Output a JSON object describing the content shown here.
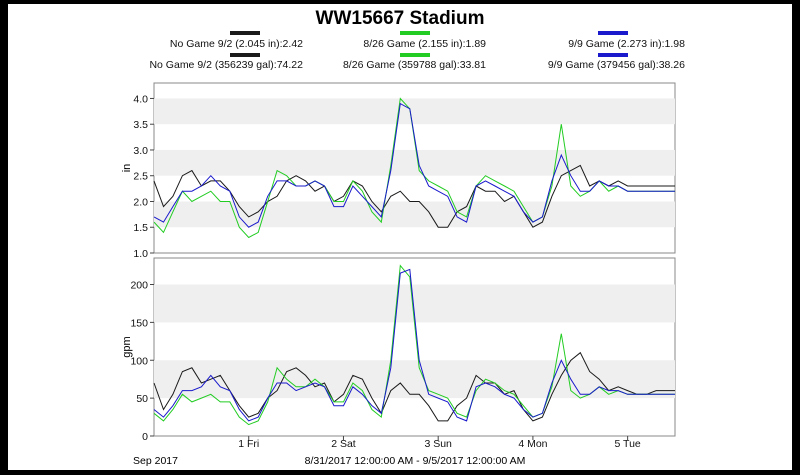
{
  "title": "WW15667 Stadium",
  "legend": {
    "row1": [
      {
        "label": "No Game 9/2 (2.045 in):2.42",
        "color": "#1a1a1a"
      },
      {
        "label": "8/26 Game (2.155 in):1.89",
        "color": "#22cc22"
      },
      {
        "label": "9/9 Game (2.273 in):1.98",
        "color": "#1a1acc"
      }
    ],
    "row2": [
      {
        "label": "No Game 9/2 (356239 gal):74.22",
        "color": "#1a1a1a"
      },
      {
        "label": "8/26 Game (359788 gal):33.81",
        "color": "#22cc22"
      },
      {
        "label": "9/9 Game (379456 gal):38.26",
        "color": "#1a1acc"
      }
    ]
  },
  "xaxis": {
    "start_label": "Sep 2017",
    "range_label": "8/31/2017 12:00:00 AM - 9/5/2017 12:00:00 AM",
    "ticks": [
      "1 Fri",
      "2 Sat",
      "3 Sun",
      "4 Mon",
      "5 Tue"
    ]
  },
  "chart_data": [
    {
      "type": "line",
      "ylabel": "in",
      "ylim": [
        1.0,
        4.3
      ],
      "yticks": [
        "1.0",
        "1.5",
        "2.0",
        "2.5",
        "3.0",
        "3.5",
        "4.0"
      ],
      "xlim": [
        0,
        5.5
      ],
      "series": [
        {
          "name": "No Game 9/2 (2.045 in):2.42",
          "color": "#1a1a1a",
          "x": [
            0,
            0.1,
            0.2,
            0.3,
            0.4,
            0.5,
            0.6,
            0.7,
            0.8,
            0.9,
            1.0,
            1.1,
            1.2,
            1.3,
            1.4,
            1.5,
            1.6,
            1.7,
            1.8,
            1.9,
            2.0,
            2.1,
            2.2,
            2.3,
            2.4,
            2.5,
            2.6,
            2.7,
            2.8,
            2.9,
            3.0,
            3.1,
            3.2,
            3.3,
            3.4,
            3.5,
            3.6,
            3.7,
            3.8,
            3.9,
            4.0,
            4.1,
            4.2,
            4.3,
            4.4,
            4.5,
            4.6,
            4.7,
            4.8,
            4.9,
            5.0,
            5.1,
            5.2,
            5.3,
            5.4,
            5.5
          ],
          "y": [
            2.4,
            1.9,
            2.1,
            2.5,
            2.6,
            2.3,
            2.4,
            2.4,
            2.2,
            1.9,
            1.7,
            1.8,
            2.0,
            2.1,
            2.4,
            2.5,
            2.4,
            2.2,
            2.3,
            2.0,
            2.1,
            2.4,
            2.3,
            2.0,
            1.8,
            2.1,
            2.2,
            2.0,
            2.0,
            1.8,
            1.5,
            1.5,
            1.8,
            1.9,
            2.3,
            2.2,
            2.2,
            2.0,
            2.1,
            1.8,
            1.5,
            1.6,
            2.1,
            2.5,
            2.6,
            2.7,
            2.3,
            2.4,
            2.3,
            2.4,
            2.3,
            2.3,
            2.3,
            2.3,
            2.3,
            2.3
          ]
        },
        {
          "name": "8/26 Game (2.155 in):1.89",
          "color": "#22cc22",
          "x": [
            0,
            0.1,
            0.2,
            0.3,
            0.4,
            0.5,
            0.6,
            0.7,
            0.8,
            0.9,
            1.0,
            1.1,
            1.2,
            1.3,
            1.4,
            1.5,
            1.6,
            1.7,
            1.8,
            1.9,
            2.0,
            2.1,
            2.2,
            2.3,
            2.4,
            2.5,
            2.6,
            2.7,
            2.8,
            2.9,
            3.0,
            3.1,
            3.2,
            3.3,
            3.4,
            3.5,
            3.6,
            3.7,
            3.8,
            3.9,
            4.0,
            4.1,
            4.2,
            4.3,
            4.4,
            4.5,
            4.6,
            4.7,
            4.8,
            4.9,
            5.0,
            5.1,
            5.2,
            5.3,
            5.4,
            5.5
          ],
          "y": [
            1.6,
            1.4,
            1.8,
            2.2,
            2.0,
            2.1,
            2.2,
            2.0,
            2.0,
            1.5,
            1.3,
            1.4,
            2.0,
            2.6,
            2.5,
            2.3,
            2.3,
            2.4,
            2.3,
            2.0,
            2.0,
            2.4,
            2.2,
            1.8,
            1.6,
            2.7,
            4.0,
            3.8,
            2.6,
            2.4,
            2.3,
            2.2,
            1.8,
            1.7,
            2.3,
            2.5,
            2.4,
            2.3,
            2.2,
            1.9,
            1.6,
            1.7,
            2.3,
            3.5,
            2.3,
            2.1,
            2.2,
            2.4,
            2.2,
            2.3,
            2.2,
            2.2,
            2.2,
            2.2,
            2.2,
            2.2
          ]
        },
        {
          "name": "9/9 Game (2.273 in):1.98",
          "color": "#1a1acc",
          "x": [
            0,
            0.1,
            0.2,
            0.3,
            0.4,
            0.5,
            0.6,
            0.7,
            0.8,
            0.9,
            1.0,
            1.1,
            1.2,
            1.3,
            1.4,
            1.5,
            1.6,
            1.7,
            1.8,
            1.9,
            2.0,
            2.1,
            2.2,
            2.3,
            2.4,
            2.5,
            2.6,
            2.7,
            2.8,
            2.9,
            3.0,
            3.1,
            3.2,
            3.3,
            3.4,
            3.5,
            3.6,
            3.7,
            3.8,
            3.9,
            4.0,
            4.1,
            4.2,
            4.3,
            4.4,
            4.5,
            4.6,
            4.7,
            4.8,
            4.9,
            5.0,
            5.1,
            5.2,
            5.3,
            5.4,
            5.5
          ],
          "y": [
            1.7,
            1.6,
            1.9,
            2.2,
            2.2,
            2.3,
            2.5,
            2.3,
            2.2,
            1.7,
            1.5,
            1.6,
            2.1,
            2.4,
            2.4,
            2.3,
            2.3,
            2.4,
            2.3,
            1.9,
            1.9,
            2.3,
            2.1,
            1.9,
            1.7,
            2.6,
            3.9,
            3.8,
            2.7,
            2.3,
            2.2,
            2.1,
            1.7,
            1.6,
            2.3,
            2.4,
            2.3,
            2.2,
            2.1,
            1.8,
            1.6,
            1.7,
            2.4,
            2.9,
            2.5,
            2.2,
            2.2,
            2.4,
            2.3,
            2.3,
            2.2,
            2.2,
            2.2,
            2.2,
            2.2,
            2.2
          ]
        }
      ]
    },
    {
      "type": "line",
      "ylabel": "gpm",
      "ylim": [
        0,
        235
      ],
      "yticks": [
        "0",
        "50",
        "100",
        "150",
        "200"
      ],
      "xlim": [
        0,
        5.5
      ],
      "series": [
        {
          "name": "No Game 9/2 (356239 gal):74.22",
          "color": "#1a1a1a",
          "x": [
            0,
            0.1,
            0.2,
            0.3,
            0.4,
            0.5,
            0.6,
            0.7,
            0.8,
            0.9,
            1.0,
            1.1,
            1.2,
            1.3,
            1.4,
            1.5,
            1.6,
            1.7,
            1.8,
            1.9,
            2.0,
            2.1,
            2.2,
            2.3,
            2.4,
            2.5,
            2.6,
            2.7,
            2.8,
            2.9,
            3.0,
            3.1,
            3.2,
            3.3,
            3.4,
            3.5,
            3.6,
            3.7,
            3.8,
            3.9,
            4.0,
            4.1,
            4.2,
            4.3,
            4.4,
            4.5,
            4.6,
            4.7,
            4.8,
            4.9,
            5.0,
            5.1,
            5.2,
            5.3,
            5.4,
            5.5
          ],
          "y": [
            70,
            35,
            55,
            85,
            90,
            70,
            75,
            80,
            60,
            40,
            25,
            30,
            50,
            60,
            85,
            90,
            80,
            65,
            70,
            45,
            55,
            80,
            75,
            50,
            30,
            60,
            70,
            55,
            55,
            40,
            20,
            20,
            40,
            50,
            80,
            70,
            70,
            55,
            60,
            35,
            20,
            25,
            55,
            80,
            100,
            110,
            85,
            75,
            60,
            65,
            60,
            55,
            55,
            60,
            60,
            60
          ]
        },
        {
          "name": "8/26 Game (359788 gal):33.81",
          "color": "#22cc22",
          "x": [
            0,
            0.1,
            0.2,
            0.3,
            0.4,
            0.5,
            0.6,
            0.7,
            0.8,
            0.9,
            1.0,
            1.1,
            1.2,
            1.3,
            1.4,
            1.5,
            1.6,
            1.7,
            1.8,
            1.9,
            2.0,
            2.1,
            2.2,
            2.3,
            2.4,
            2.5,
            2.6,
            2.7,
            2.8,
            2.9,
            3.0,
            3.1,
            3.2,
            3.3,
            3.4,
            3.5,
            3.6,
            3.7,
            3.8,
            3.9,
            4.0,
            4.1,
            4.2,
            4.3,
            4.4,
            4.5,
            4.6,
            4.7,
            4.8,
            4.9,
            5.0,
            5.1,
            5.2,
            5.3,
            5.4,
            5.5
          ],
          "y": [
            30,
            20,
            35,
            55,
            45,
            50,
            55,
            45,
            45,
            25,
            15,
            20,
            45,
            90,
            75,
            65,
            65,
            75,
            65,
            45,
            45,
            70,
            60,
            35,
            25,
            100,
            225,
            210,
            90,
            60,
            55,
            50,
            30,
            25,
            60,
            75,
            70,
            60,
            55,
            40,
            25,
            30,
            65,
            135,
            60,
            50,
            55,
            65,
            55,
            60,
            55,
            55,
            55,
            55,
            55,
            55
          ]
        },
        {
          "name": "9/9 Game (379456 gal):38.26",
          "color": "#1a1acc",
          "x": [
            0,
            0.1,
            0.2,
            0.3,
            0.4,
            0.5,
            0.6,
            0.7,
            0.8,
            0.9,
            1.0,
            1.1,
            1.2,
            1.3,
            1.4,
            1.5,
            1.6,
            1.7,
            1.8,
            1.9,
            2.0,
            2.1,
            2.2,
            2.3,
            2.4,
            2.5,
            2.6,
            2.7,
            2.8,
            2.9,
            3.0,
            3.1,
            3.2,
            3.3,
            3.4,
            3.5,
            3.6,
            3.7,
            3.8,
            3.9,
            4.0,
            4.1,
            4.2,
            4.3,
            4.4,
            4.5,
            4.6,
            4.7,
            4.8,
            4.9,
            5.0,
            5.1,
            5.2,
            5.3,
            5.4,
            5.5
          ],
          "y": [
            35,
            25,
            40,
            60,
            60,
            65,
            80,
            65,
            60,
            35,
            20,
            25,
            50,
            70,
            70,
            60,
            65,
            70,
            65,
            40,
            40,
            65,
            55,
            40,
            30,
            90,
            215,
            220,
            100,
            55,
            50,
            45,
            25,
            20,
            65,
            70,
            65,
            55,
            50,
            35,
            25,
            30,
            70,
            100,
            75,
            55,
            55,
            65,
            60,
            60,
            55,
            55,
            55,
            55,
            55,
            55
          ]
        }
      ]
    }
  ]
}
